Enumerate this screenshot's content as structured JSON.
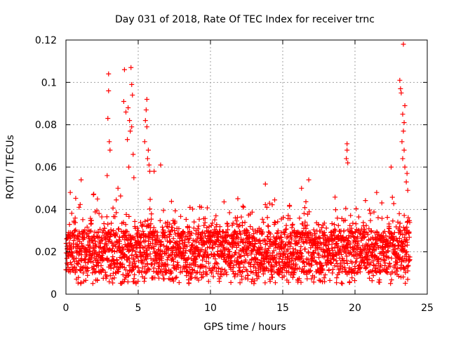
{
  "chart_data": {
    "type": "scatter",
    "title": "Day 031 of 2018, Rate Of TEC Index for receiver trnc",
    "xlabel": "GPS time / hours",
    "ylabel": "ROTI / TECUs",
    "xlim": [
      0,
      25
    ],
    "ylim": [
      0,
      0.12
    ],
    "x_ticks": [
      0,
      5,
      10,
      15,
      20,
      25
    ],
    "x_tick_labels": [
      "0",
      "5",
      "10",
      "15",
      "20",
      "25"
    ],
    "y_ticks": [
      0,
      0.02,
      0.04,
      0.06,
      0.08,
      0.1,
      0.12
    ],
    "y_tick_labels": [
      "0",
      "0.02",
      "0.04",
      "0.06",
      "0.08",
      "0.1",
      "0.12"
    ],
    "grid": true,
    "marker": "+",
    "color": "#ff0000",
    "series": [
      {
        "name": "ROTI",
        "x_range": [
          0,
          23.8
        ],
        "baseline_band": [
          0.01,
          0.03
        ],
        "points": [
          {
            "x": 2.95,
            "y": 0.104
          },
          {
            "x": 2.95,
            "y": 0.096
          },
          {
            "x": 2.9,
            "y": 0.083
          },
          {
            "x": 3.0,
            "y": 0.072
          },
          {
            "x": 3.05,
            "y": 0.068
          },
          {
            "x": 2.85,
            "y": 0.056
          },
          {
            "x": 4.05,
            "y": 0.106
          },
          {
            "x": 4.5,
            "y": 0.107
          },
          {
            "x": 4.55,
            "y": 0.099
          },
          {
            "x": 4.6,
            "y": 0.094
          },
          {
            "x": 4.0,
            "y": 0.091
          },
          {
            "x": 4.3,
            "y": 0.088
          },
          {
            "x": 4.15,
            "y": 0.086
          },
          {
            "x": 4.4,
            "y": 0.082
          },
          {
            "x": 4.55,
            "y": 0.079
          },
          {
            "x": 4.45,
            "y": 0.077
          },
          {
            "x": 4.25,
            "y": 0.073
          },
          {
            "x": 4.65,
            "y": 0.066
          },
          {
            "x": 4.35,
            "y": 0.06
          },
          {
            "x": 4.7,
            "y": 0.055
          },
          {
            "x": 5.6,
            "y": 0.092
          },
          {
            "x": 5.55,
            "y": 0.087
          },
          {
            "x": 5.5,
            "y": 0.082
          },
          {
            "x": 5.6,
            "y": 0.079
          },
          {
            "x": 5.45,
            "y": 0.072
          },
          {
            "x": 5.7,
            "y": 0.068
          },
          {
            "x": 5.65,
            "y": 0.064
          },
          {
            "x": 5.75,
            "y": 0.061
          },
          {
            "x": 5.8,
            "y": 0.058
          },
          {
            "x": 6.1,
            "y": 0.058
          },
          {
            "x": 6.55,
            "y": 0.061
          },
          {
            "x": 0.3,
            "y": 0.048
          },
          {
            "x": 1.05,
            "y": 0.054
          },
          {
            "x": 1.9,
            "y": 0.047
          },
          {
            "x": 3.6,
            "y": 0.05
          },
          {
            "x": 13.8,
            "y": 0.052
          },
          {
            "x": 16.3,
            "y": 0.05
          },
          {
            "x": 16.8,
            "y": 0.054
          },
          {
            "x": 19.45,
            "y": 0.071
          },
          {
            "x": 19.45,
            "y": 0.068
          },
          {
            "x": 19.4,
            "y": 0.064
          },
          {
            "x": 19.5,
            "y": 0.062
          },
          {
            "x": 21.5,
            "y": 0.048
          },
          {
            "x": 22.5,
            "y": 0.06
          },
          {
            "x": 23.1,
            "y": 0.101
          },
          {
            "x": 23.15,
            "y": 0.097
          },
          {
            "x": 23.2,
            "y": 0.095
          },
          {
            "x": 23.35,
            "y": 0.118
          },
          {
            "x": 23.45,
            "y": 0.089
          },
          {
            "x": 23.3,
            "y": 0.085
          },
          {
            "x": 23.4,
            "y": 0.081
          },
          {
            "x": 23.35,
            "y": 0.077
          },
          {
            "x": 23.25,
            "y": 0.072
          },
          {
            "x": 23.4,
            "y": 0.068
          },
          {
            "x": 23.3,
            "y": 0.064
          },
          {
            "x": 23.45,
            "y": 0.06
          },
          {
            "x": 23.6,
            "y": 0.057
          },
          {
            "x": 23.55,
            "y": 0.053
          },
          {
            "x": 23.65,
            "y": 0.049
          }
        ]
      }
    ]
  }
}
